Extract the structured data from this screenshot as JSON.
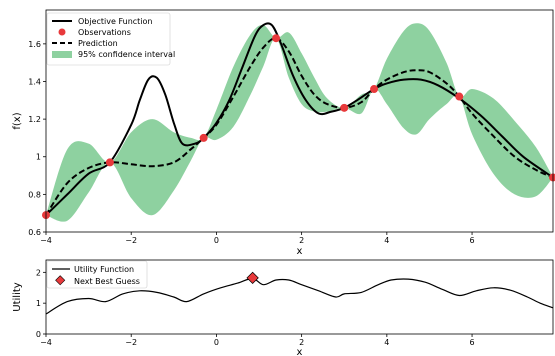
{
  "chart_data": [
    {
      "type": "line",
      "xlabel": "x",
      "ylabel": "f(x)",
      "xlim": [
        -4,
        7.9
      ],
      "ylim": [
        0.6,
        1.78
      ],
      "xticks": [
        -4,
        -2,
        0,
        2,
        4,
        6
      ],
      "yticks": [
        0.6,
        0.8,
        1.0,
        1.2,
        1.4,
        1.6
      ],
      "grid": false,
      "legend_position": "top-left",
      "colors": {
        "objective": "#000000",
        "observation": "#e8393b",
        "prediction": "#000000",
        "ci": "#8ed1a0"
      },
      "series": [
        {
          "name": "Objective Function",
          "style": "solid",
          "x": [
            -4,
            -3.5,
            -3,
            -2.5,
            -2,
            -1.8,
            -1.6,
            -1.4,
            -1.2,
            -1,
            -0.8,
            -0.5,
            -0.3,
            0,
            0.3,
            0.6,
            0.9,
            1.1,
            1.3,
            1.5,
            1.8,
            2.1,
            2.4,
            2.7,
            3,
            3.3,
            3.7,
            4,
            4.4,
            4.8,
            5.2,
            5.7,
            6.2,
            6.7,
            7.2,
            7.9
          ],
          "y": [
            0.69,
            0.8,
            0.91,
            0.97,
            1.17,
            1.3,
            1.41,
            1.42,
            1.33,
            1.18,
            1.07,
            1.07,
            1.1,
            1.18,
            1.3,
            1.47,
            1.64,
            1.7,
            1.7,
            1.61,
            1.43,
            1.3,
            1.23,
            1.24,
            1.26,
            1.3,
            1.36,
            1.39,
            1.41,
            1.41,
            1.38,
            1.31,
            1.22,
            1.11,
            1.0,
            0.89
          ]
        },
        {
          "name": "Prediction",
          "style": "dashed",
          "x": [
            -4,
            -3.5,
            -3,
            -2.5,
            -2,
            -1.5,
            -1,
            -0.6,
            -0.3,
            0,
            0.4,
            0.8,
            1.1,
            1.4,
            1.7,
            2,
            2.3,
            2.6,
            3,
            3.4,
            3.7,
            4,
            4.4,
            4.7,
            5,
            5.4,
            5.7,
            6,
            6.5,
            7,
            7.5,
            7.9
          ],
          "y": [
            0.69,
            0.86,
            0.94,
            0.97,
            0.96,
            0.95,
            0.97,
            1.04,
            1.1,
            1.17,
            1.32,
            1.48,
            1.58,
            1.63,
            1.56,
            1.43,
            1.33,
            1.28,
            1.26,
            1.29,
            1.36,
            1.41,
            1.45,
            1.46,
            1.45,
            1.39,
            1.32,
            1.23,
            1.11,
            1.0,
            0.93,
            0.89
          ]
        },
        {
          "name": "95% confidence interval",
          "style": "band",
          "x": [
            -4,
            -3.5,
            -3,
            -2.5,
            -2,
            -1.5,
            -1,
            -0.6,
            -0.3,
            0,
            0.4,
            0.8,
            1.1,
            1.4,
            1.7,
            2,
            2.3,
            2.6,
            3,
            3.4,
            3.7,
            4,
            4.4,
            4.7,
            5,
            5.4,
            5.7,
            6,
            6.5,
            7,
            7.5,
            7.9
          ],
          "lower": [
            0.69,
            0.66,
            0.81,
            0.97,
            0.78,
            0.69,
            0.82,
            0.98,
            1.1,
            1.09,
            1.16,
            1.33,
            1.48,
            1.63,
            1.42,
            1.28,
            1.24,
            1.24,
            1.26,
            1.23,
            1.36,
            1.28,
            1.15,
            1.12,
            1.2,
            1.28,
            1.32,
            1.12,
            0.91,
            0.8,
            0.79,
            0.89
          ],
          "upper": [
            0.69,
            1.04,
            1.07,
            0.97,
            1.13,
            1.2,
            1.13,
            1.1,
            1.1,
            1.25,
            1.48,
            1.65,
            1.7,
            1.63,
            1.66,
            1.55,
            1.42,
            1.31,
            1.26,
            1.33,
            1.36,
            1.52,
            1.67,
            1.71,
            1.67,
            1.5,
            1.32,
            1.36,
            1.31,
            1.19,
            1.05,
            0.89
          ]
        },
        {
          "name": "Observations",
          "style": "markers",
          "x": [
            -4,
            -2.5,
            -0.3,
            1.4,
            3,
            3.7,
            5.7,
            7.9
          ],
          "y": [
            0.69,
            0.97,
            1.1,
            1.63,
            1.26,
            1.36,
            1.32,
            0.89
          ]
        }
      ]
    },
    {
      "type": "line",
      "xlabel": "x",
      "ylabel": "Utility",
      "xlim": [
        -4,
        7.9
      ],
      "ylim": [
        0,
        2.4
      ],
      "xticks": [
        -4,
        -2,
        0,
        2,
        4,
        6
      ],
      "yticks": [
        0,
        1,
        2
      ],
      "grid": false,
      "legend_position": "top-left",
      "colors": {
        "utility": "#000000",
        "next_guess": "#e8393b"
      },
      "series": [
        {
          "name": "Utility Function",
          "style": "solid",
          "x": [
            -4,
            -3.5,
            -3,
            -2.6,
            -2.2,
            -1.8,
            -1.4,
            -1,
            -0.7,
            -0.3,
            0.1,
            0.5,
            0.85,
            1.1,
            1.4,
            1.7,
            2,
            2.4,
            2.8,
            3,
            3.4,
            3.8,
            4.1,
            4.5,
            4.9,
            5.3,
            5.7,
            6.1,
            6.5,
            6.9,
            7.3,
            7.6,
            7.9
          ],
          "y": [
            0.65,
            1.05,
            1.15,
            1.05,
            1.3,
            1.4,
            1.35,
            1.2,
            1.05,
            1.3,
            1.5,
            1.65,
            1.8,
            1.6,
            1.75,
            1.75,
            1.6,
            1.4,
            1.2,
            1.3,
            1.35,
            1.6,
            1.75,
            1.78,
            1.68,
            1.45,
            1.25,
            1.4,
            1.5,
            1.42,
            1.2,
            1.0,
            0.85
          ]
        },
        {
          "name": "Next Best Guess",
          "style": "markers",
          "x": [
            0.85
          ],
          "y": [
            1.82
          ]
        }
      ]
    }
  ]
}
